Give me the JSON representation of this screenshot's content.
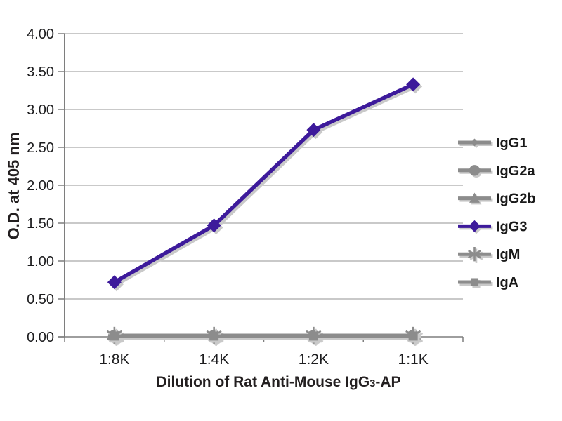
{
  "chart_data": {
    "type": "line",
    "title": "",
    "ylabel": "O.D. at 405 nm",
    "xlabel": "Dilution of Rat Anti-Mouse IgG3-AP",
    "xlabel_parts": {
      "prefix": "Dilution of Rat Anti-Mouse IgG",
      "subscript": "3",
      "suffix": "-AP"
    },
    "categories": [
      "1:8K",
      "1:4K",
      "1:2K",
      "1:1K"
    ],
    "y_tick_labels": [
      "0.00",
      "0.50",
      "1.00",
      "1.50",
      "2.00",
      "2.50",
      "3.00",
      "3.50",
      "4.00"
    ],
    "ylim": [
      0,
      4
    ],
    "y_step": 0.5,
    "grid": true,
    "legend_position": "right",
    "series": [
      {
        "name": "IgG1",
        "marker": "diamond-small",
        "color": "#8c8c8c",
        "z": 1,
        "values": [
          0.01,
          0.01,
          0.01,
          0.01
        ]
      },
      {
        "name": "IgG2a",
        "marker": "circle",
        "color": "#8c8c8c",
        "z": 2,
        "values": [
          0.01,
          0.01,
          0.01,
          0.01
        ]
      },
      {
        "name": "IgG2b",
        "marker": "triangle",
        "color": "#8c8c8c",
        "z": 3,
        "values": [
          0.02,
          0.02,
          0.02,
          0.02
        ]
      },
      {
        "name": "IgG3",
        "marker": "diamond",
        "color": "#3d1a9b",
        "z": 10,
        "values": [
          0.72,
          1.47,
          2.73,
          3.33
        ]
      },
      {
        "name": "IgM",
        "marker": "asterisk",
        "color": "#8c8c8c",
        "z": 4,
        "values": [
          0.02,
          0.02,
          0.02,
          0.02
        ]
      },
      {
        "name": "IgA",
        "marker": "square",
        "color": "#8c8c8c",
        "z": 5,
        "values": [
          0.01,
          0.01,
          0.01,
          0.01
        ]
      }
    ],
    "colors": {
      "grid": "#a9a9a9",
      "axis": "#7e7e7e",
      "shadow": "#c9c9c9",
      "tick_text": "#1d1d1f",
      "legend_text": "#1a1a1a"
    }
  }
}
